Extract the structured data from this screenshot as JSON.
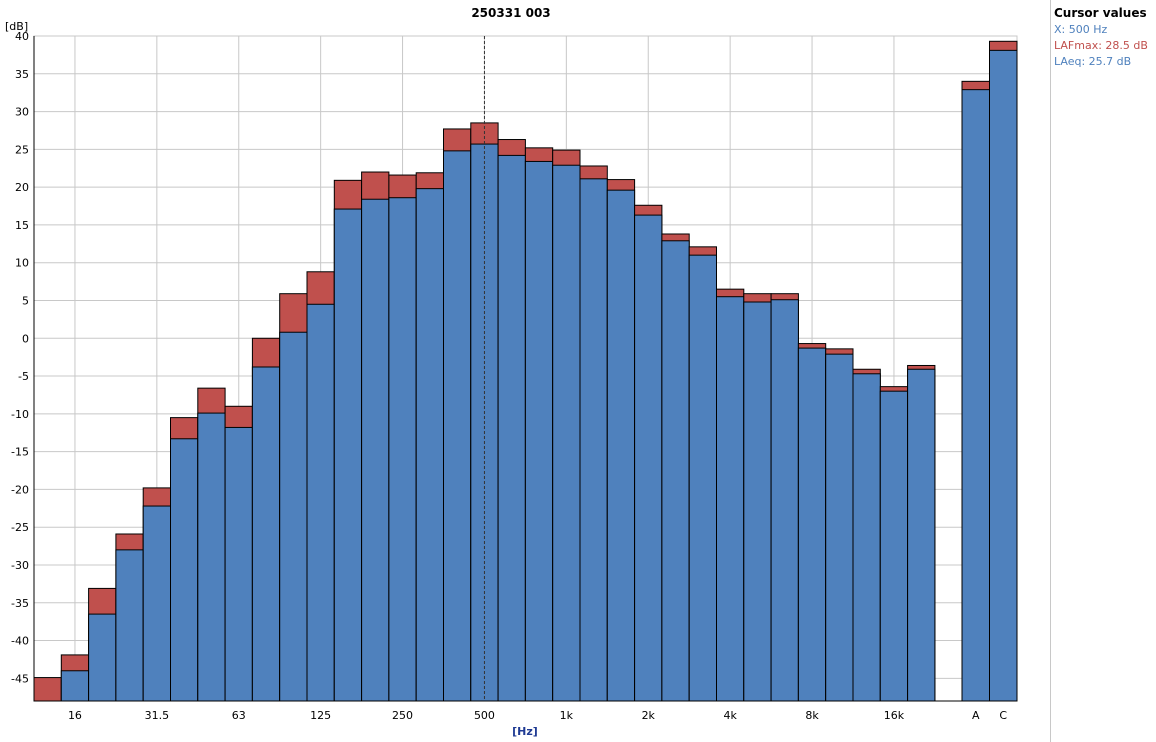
{
  "chart_data": {
    "type": "bar",
    "title": "250331 003",
    "ylabel": "[dB]",
    "xlabel": "[Hz]",
    "ylim": [
      -48,
      40
    ],
    "yticks": [
      40,
      35,
      30,
      25,
      20,
      15,
      10,
      5,
      0,
      -5,
      -10,
      -15,
      -20,
      -25,
      -30,
      -35,
      -40,
      -45
    ],
    "categories": [
      "12.5",
      "16",
      "20",
      "25",
      "31.5",
      "40",
      "50",
      "63",
      "80",
      "100",
      "125",
      "160",
      "200",
      "250",
      "315",
      "400",
      "500",
      "630",
      "800",
      "1k",
      "1.25k",
      "1.6k",
      "2k",
      "2.5k",
      "3.15k",
      "4k",
      "5k",
      "6.3k",
      "8k",
      "10k",
      "12.5k",
      "16k",
      "20k"
    ],
    "xtick_labels": [
      "16",
      "31.5",
      "63",
      "125",
      "250",
      "500",
      "1k",
      "2k",
      "4k",
      "8k",
      "16k"
    ],
    "series": [
      {
        "name": "LAFmax",
        "color": "#c0504d",
        "values": [
          -44.9,
          -41.9,
          -33.1,
          -25.9,
          -19.8,
          -10.5,
          -6.6,
          -9.0,
          0.0,
          5.9,
          8.8,
          20.9,
          22.0,
          21.6,
          21.9,
          27.7,
          28.5,
          26.3,
          25.2,
          24.9,
          22.8,
          21.0,
          17.6,
          13.8,
          12.1,
          6.5,
          5.9,
          5.9,
          -0.7,
          -1.4,
          -4.1,
          -6.4,
          -3.6
        ]
      },
      {
        "name": "LAeq",
        "color": "#4f81bd",
        "values": [
          -48.0,
          -44.0,
          -36.5,
          -28.0,
          -22.2,
          -13.3,
          -9.9,
          -11.8,
          -3.8,
          0.8,
          4.5,
          17.1,
          18.4,
          18.6,
          19.8,
          24.8,
          25.7,
          24.2,
          23.4,
          22.9,
          21.1,
          19.6,
          16.3,
          12.9,
          11.0,
          5.5,
          4.8,
          5.1,
          -1.3,
          -2.1,
          -4.7,
          -7.0,
          -4.1
        ]
      }
    ],
    "summary": {
      "categories": [
        "A",
        "C"
      ],
      "LAFmax": [
        34.0,
        39.3
      ],
      "LAeq": [
        32.9,
        38.1
      ]
    },
    "cursor": {
      "x_label": "500"
    },
    "grid": true
  },
  "cursor_panel": {
    "title": "Cursor values",
    "x_text": "X: 500 Hz",
    "lafmax_text": "LAFmax: 28.5 dB",
    "laeq_text": "LAeq: 25.7 dB",
    "x_color": "#4f81bd",
    "lafmax_color": "#c0504d",
    "laeq_color": "#4f81bd"
  }
}
